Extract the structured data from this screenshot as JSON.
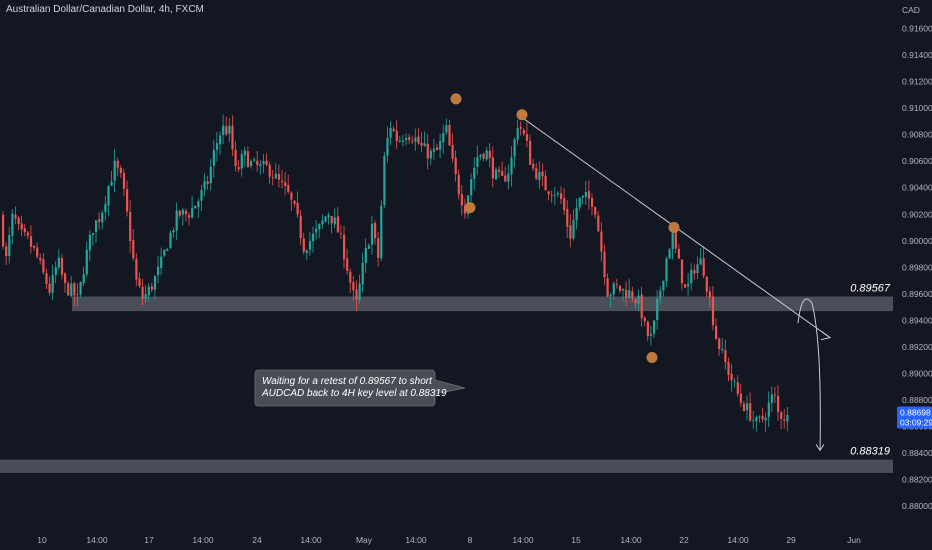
{
  "header": {
    "symbol_title": "Australian Dollar/Canadian Dollar, 4h, FXCM"
  },
  "chart_data": {
    "type": "candlestick",
    "currency_label": "CAD",
    "y_ticks": [
      "0.91600",
      "0.91400",
      "0.91200",
      "0.91000",
      "0.90800",
      "0.90600",
      "0.90400",
      "0.90200",
      "0.90000",
      "0.89800",
      "0.89600",
      "0.89400",
      "0.89200",
      "0.89000",
      "0.88800",
      "0.88600",
      "0.88400",
      "0.88200",
      "0.88000"
    ],
    "ylim": [
      0.8788,
      0.9174
    ],
    "x_ticks": [
      "10",
      "14:00",
      "17",
      "14:00",
      "24",
      "14:00",
      "May",
      "14:00",
      "8",
      "14:00",
      "15",
      "14:00",
      "22",
      "14:00",
      "29",
      "Jun"
    ],
    "colors": {
      "background": "#131722",
      "up": "#26a69a",
      "down": "#ef5350",
      "zone": "#787b86",
      "marker": "#c07a3f",
      "trendline": "#c9ccd4",
      "current_price_bg": "#2962ff"
    },
    "key_levels": [
      {
        "label": "0.89567",
        "from": 0.8947,
        "to": 0.8958
      },
      {
        "label": "0.88319",
        "from": 0.8825,
        "to": 0.8835
      }
    ],
    "current_price": {
      "value": "0.88698",
      "countdown": "03:09:29"
    },
    "annotation": "Waiting for a retest of 0.89567 to short AUDCAD back to 4H key level at 0.88319",
    "annotation_lines": [
      "Waiting for a retest of 0.89567 to short",
      "AUDCAD back to 4H key level at 0.88319"
    ],
    "path": [
      [
        0,
        0.903
      ],
      [
        8,
        0.8985
      ],
      [
        15,
        0.902
      ],
      [
        22,
        0.9005
      ],
      [
        30,
        0.9
      ],
      [
        38,
        0.899
      ],
      [
        45,
        0.8975
      ],
      [
        52,
        0.8962
      ],
      [
        60,
        0.8985
      ],
      [
        67,
        0.8965
      ],
      [
        74,
        0.8962
      ],
      [
        80,
        0.8955
      ],
      [
        87,
        0.8985
      ],
      [
        95,
        0.901
      ],
      [
        103,
        0.902
      ],
      [
        110,
        0.904
      ],
      [
        117,
        0.9057
      ],
      [
        124,
        0.9045
      ],
      [
        131,
        0.901
      ],
      [
        138,
        0.897
      ],
      [
        145,
        0.8956
      ],
      [
        153,
        0.8965
      ],
      [
        162,
        0.898
      ],
      [
        170,
        0.9
      ],
      [
        180,
        0.902
      ],
      [
        190,
        0.902
      ],
      [
        200,
        0.903
      ],
      [
        210,
        0.9045
      ],
      [
        217,
        0.907
      ],
      [
        224,
        0.9085
      ],
      [
        232,
        0.9082
      ],
      [
        238,
        0.905
      ],
      [
        246,
        0.9065
      ],
      [
        254,
        0.9057
      ],
      [
        262,
        0.9055
      ],
      [
        270,
        0.9055
      ],
      [
        280,
        0.9045
      ],
      [
        290,
        0.9035
      ],
      [
        298,
        0.902
      ],
      [
        306,
        0.8995
      ],
      [
        314,
        0.9002
      ],
      [
        322,
        0.901
      ],
      [
        330,
        0.9022
      ],
      [
        338,
        0.9012
      ],
      [
        345,
        0.8995
      ],
      [
        352,
        0.897
      ],
      [
        358,
        0.895
      ],
      [
        366,
        0.8985
      ],
      [
        374,
        0.9012
      ],
      [
        380,
        0.8985
      ],
      [
        386,
        0.906
      ],
      [
        392,
        0.9088
      ],
      [
        400,
        0.9075
      ],
      [
        408,
        0.9082
      ],
      [
        416,
        0.9078
      ],
      [
        424,
        0.907
      ],
      [
        432,
        0.9065
      ],
      [
        440,
        0.9068
      ],
      [
        448,
        0.9085
      ],
      [
        454,
        0.906
      ],
      [
        460,
        0.904
      ],
      [
        467,
        0.9025
      ],
      [
        474,
        0.905
      ],
      [
        480,
        0.9065
      ],
      [
        488,
        0.9068
      ],
      [
        496,
        0.905
      ],
      [
        504,
        0.9045
      ],
      [
        512,
        0.9055
      ],
      [
        520,
        0.909
      ],
      [
        528,
        0.9075
      ],
      [
        534,
        0.9055
      ],
      [
        540,
        0.905
      ],
      [
        548,
        0.904
      ],
      [
        556,
        0.9038
      ],
      [
        564,
        0.903
      ],
      [
        572,
        0.9003
      ],
      [
        580,
        0.903
      ],
      [
        588,
        0.9032
      ],
      [
        596,
        0.903
      ],
      [
        604,
        0.899
      ],
      [
        610,
        0.896
      ],
      [
        618,
        0.8965
      ],
      [
        626,
        0.8962
      ],
      [
        634,
        0.896
      ],
      [
        642,
        0.8952
      ],
      [
        648,
        0.893
      ],
      [
        654,
        0.8926
      ],
      [
        660,
        0.8955
      ],
      [
        668,
        0.8985
      ],
      [
        674,
        0.9005
      ],
      [
        680,
        0.8985
      ],
      [
        688,
        0.896
      ],
      [
        696,
        0.898
      ],
      [
        704,
        0.8985
      ],
      [
        712,
        0.8955
      ],
      [
        718,
        0.8928
      ],
      [
        726,
        0.891
      ],
      [
        734,
        0.8895
      ],
      [
        742,
        0.888
      ],
      [
        750,
        0.8872
      ],
      [
        758,
        0.8862
      ],
      [
        764,
        0.8865
      ],
      [
        770,
        0.8875
      ],
      [
        776,
        0.8885
      ],
      [
        780,
        0.887
      ],
      [
        786,
        0.8868
      ],
      [
        788,
        0.8866
      ]
    ],
    "markers": [
      {
        "x": 456,
        "y": 0.9107
      },
      {
        "x": 522,
        "y": 0.9095
      },
      {
        "x": 470,
        "y": 0.9025
      },
      {
        "x": 674,
        "y": 0.901
      },
      {
        "x": 652,
        "y": 0.8912
      }
    ],
    "trendline": {
      "from": [
        522,
        0.9093
      ],
      "to": [
        830,
        0.8927
      ]
    },
    "projection": {
      "start": [
        798,
        0.8938
      ],
      "peak": [
        806,
        0.8953
      ],
      "end": [
        820,
        0.8842
      ]
    }
  }
}
